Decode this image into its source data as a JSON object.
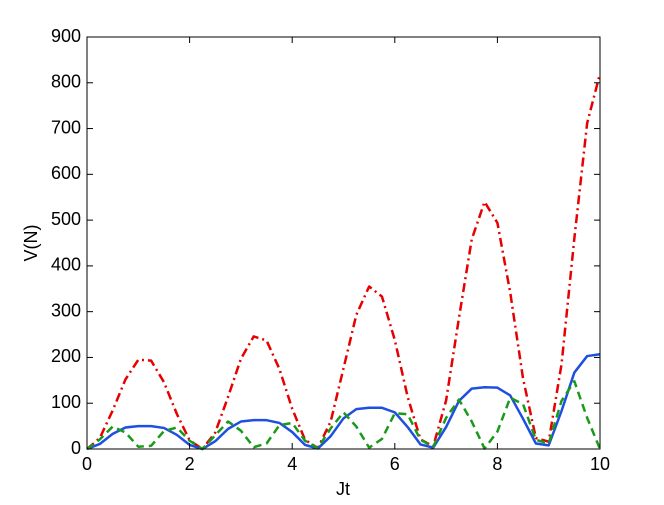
{
  "chart_data": {
    "type": "line",
    "xlabel": "Jt",
    "ylabel": "V(N)",
    "x": [
      0,
      0.25,
      0.5,
      0.75,
      1,
      1.25,
      1.5,
      1.75,
      2,
      2.25,
      2.5,
      2.75,
      3,
      3.25,
      3.5,
      3.75,
      4,
      4.25,
      4.5,
      4.75,
      5,
      5.25,
      5.5,
      5.75,
      6,
      6.25,
      6.5,
      6.75,
      7,
      7.25,
      7.5,
      7.75,
      8,
      8.25,
      8.5,
      8.75,
      9,
      9.25,
      9.5,
      9.75,
      10
    ],
    "series": [
      {
        "name": "red",
        "color": "#e60000",
        "style": "dashdot",
        "values": [
          0,
          24,
          84,
          152,
          195,
          193,
          146,
          77,
          19,
          0,
          36,
          114,
          197,
          246,
          237,
          175,
          88,
          20,
          2,
          60,
          176,
          293,
          355,
          333,
          238,
          114,
          21,
          6,
          106,
          286,
          458,
          540,
          494,
          342,
          154,
          24,
          16,
          185,
          460,
          712,
          820
        ]
      },
      {
        "name": "blue",
        "color": "#1f4fe0",
        "style": "solid",
        "values": [
          0,
          11,
          33,
          47,
          50,
          50,
          46,
          31,
          9,
          0,
          17,
          44,
          60,
          63,
          63,
          57,
          37,
          9,
          1,
          28,
          67,
          87,
          90,
          90,
          80,
          48,
          10,
          3,
          48,
          105,
          132,
          135,
          134,
          117,
          66,
          12,
          8,
          83,
          167,
          203,
          207
        ]
      },
      {
        "name": "green",
        "color": "#1a9a1a",
        "style": "dashed",
        "values": [
          0,
          21,
          49,
          36,
          5,
          7,
          39,
          47,
          18,
          0,
          30,
          60,
          40,
          4,
          12,
          52,
          57,
          18,
          2,
          45,
          80,
          49,
          3,
          22,
          78,
          76,
          20,
          5,
          68,
          108,
          60,
          1,
          38,
          112,
          98,
          20,
          12,
          105,
          148,
          68,
          0
        ]
      }
    ],
    "xlim": [
      0,
      10
    ],
    "xticks": [
      0,
      2,
      4,
      6,
      8,
      10
    ],
    "ylim": [
      0,
      900
    ],
    "yticks": [
      0,
      100,
      200,
      300,
      400,
      500,
      600,
      700,
      800,
      900
    ],
    "grid": false
  }
}
